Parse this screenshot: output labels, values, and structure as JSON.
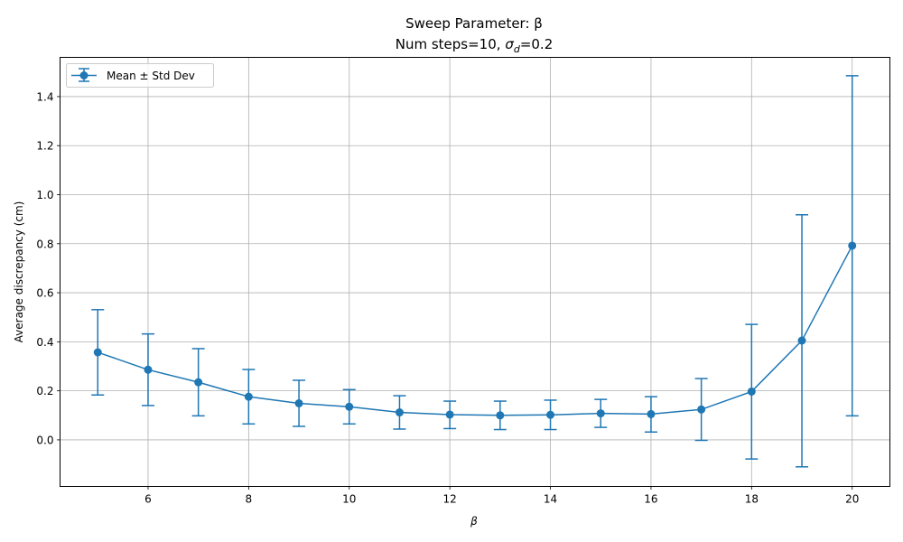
{
  "chart_data": {
    "type": "line",
    "title": "Sweep Parameter: β",
    "subtitle": "Num steps=10, σ_d=0.2",
    "xlabel": "β",
    "ylabel": "Average discrepancy (cm)",
    "xlim": [
      4.25,
      20.75
    ],
    "ylim": [
      -0.19,
      1.56
    ],
    "grid": true,
    "legend_position": "upper left",
    "x_ticks": [
      6,
      8,
      10,
      12,
      14,
      16,
      18,
      20
    ],
    "y_ticks": [
      0.0,
      0.2,
      0.4,
      0.6,
      0.8,
      1.0,
      1.2,
      1.4
    ],
    "x_tick_labels": [
      "6",
      "8",
      "10",
      "12",
      "14",
      "16",
      "18",
      "20"
    ],
    "y_tick_labels": [
      "0.0",
      "0.2",
      "0.4",
      "0.6",
      "0.8",
      "1.0",
      "1.2",
      "1.4"
    ],
    "series": [
      {
        "name": "Mean ± Std Dev",
        "color": "#1f77b4",
        "x": [
          5,
          6,
          7,
          8,
          9,
          10,
          11,
          12,
          13,
          14,
          15,
          16,
          17,
          18,
          19,
          20
        ],
        "values": [
          0.357,
          0.286,
          0.235,
          0.176,
          0.149,
          0.135,
          0.112,
          0.103,
          0.1,
          0.102,
          0.108,
          0.105,
          0.124,
          0.197,
          0.405,
          0.792
        ],
        "lower": [
          0.183,
          0.14,
          0.098,
          0.065,
          0.055,
          0.065,
          0.044,
          0.046,
          0.042,
          0.042,
          0.051,
          0.032,
          -0.002,
          -0.078,
          -0.11,
          0.098
        ],
        "upper": [
          0.531,
          0.432,
          0.372,
          0.287,
          0.243,
          0.205,
          0.18,
          0.158,
          0.158,
          0.162,
          0.165,
          0.176,
          0.25,
          0.471,
          0.918,
          1.485
        ]
      }
    ]
  },
  "legend": {
    "label": "Mean ± Std Dev"
  }
}
